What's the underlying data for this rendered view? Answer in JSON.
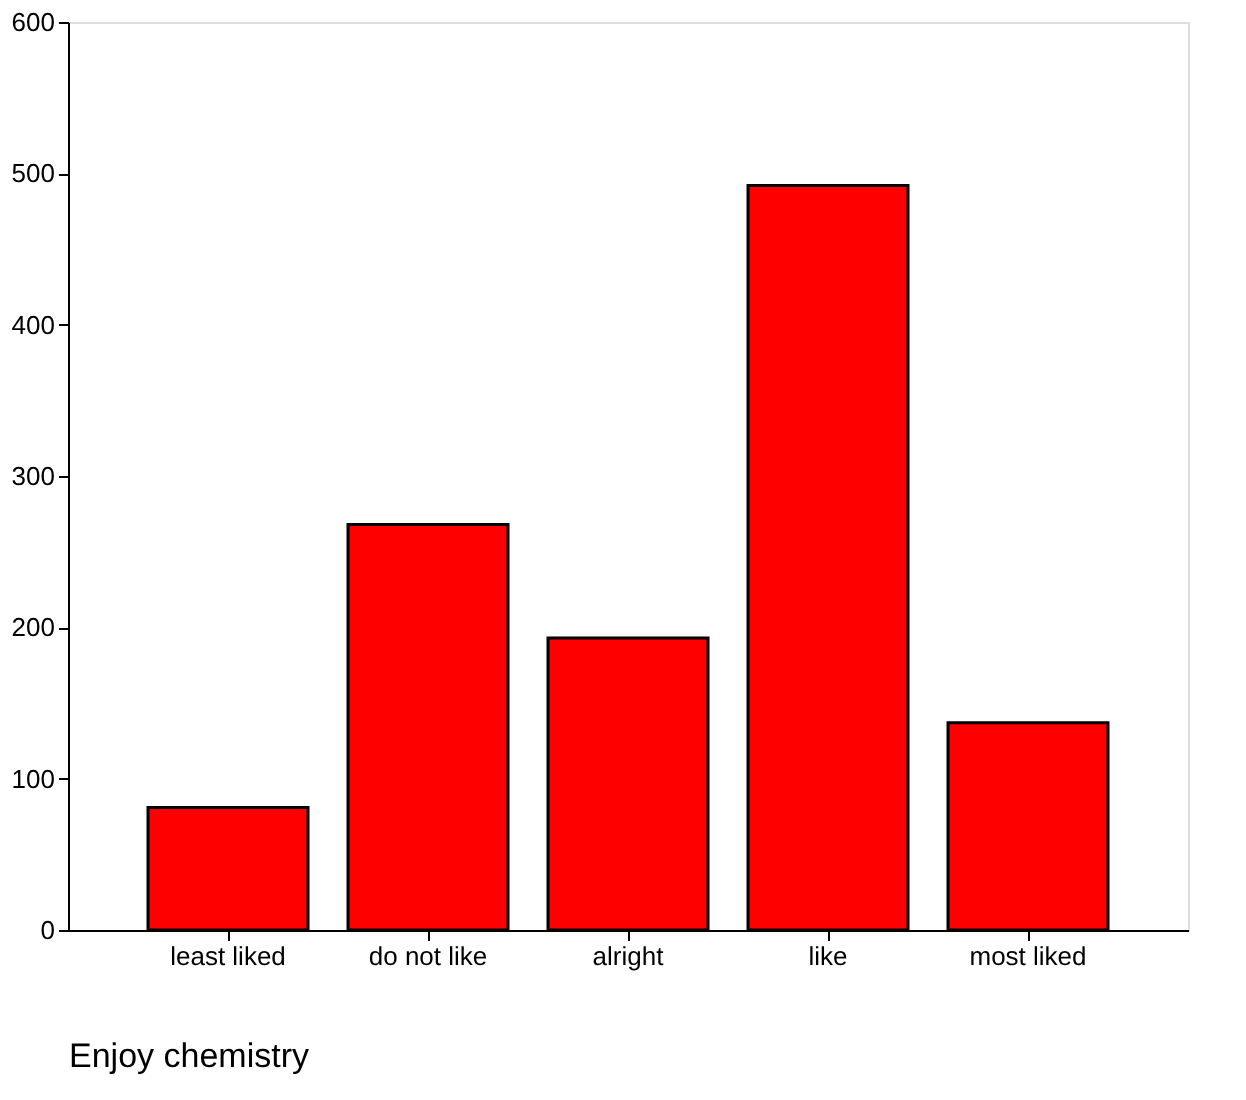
{
  "chart_data": {
    "type": "bar",
    "xlabel": "Enjoy chemistry",
    "categories": [
      "least liked",
      "do not like",
      "alright",
      "like",
      "most liked"
    ],
    "values": [
      81,
      268,
      193,
      492,
      137
    ],
    "color": "#ff0000",
    "ylim": [
      0,
      600
    ],
    "yticks": [
      0,
      100,
      200,
      300,
      400,
      500,
      600
    ],
    "grid": false
  }
}
